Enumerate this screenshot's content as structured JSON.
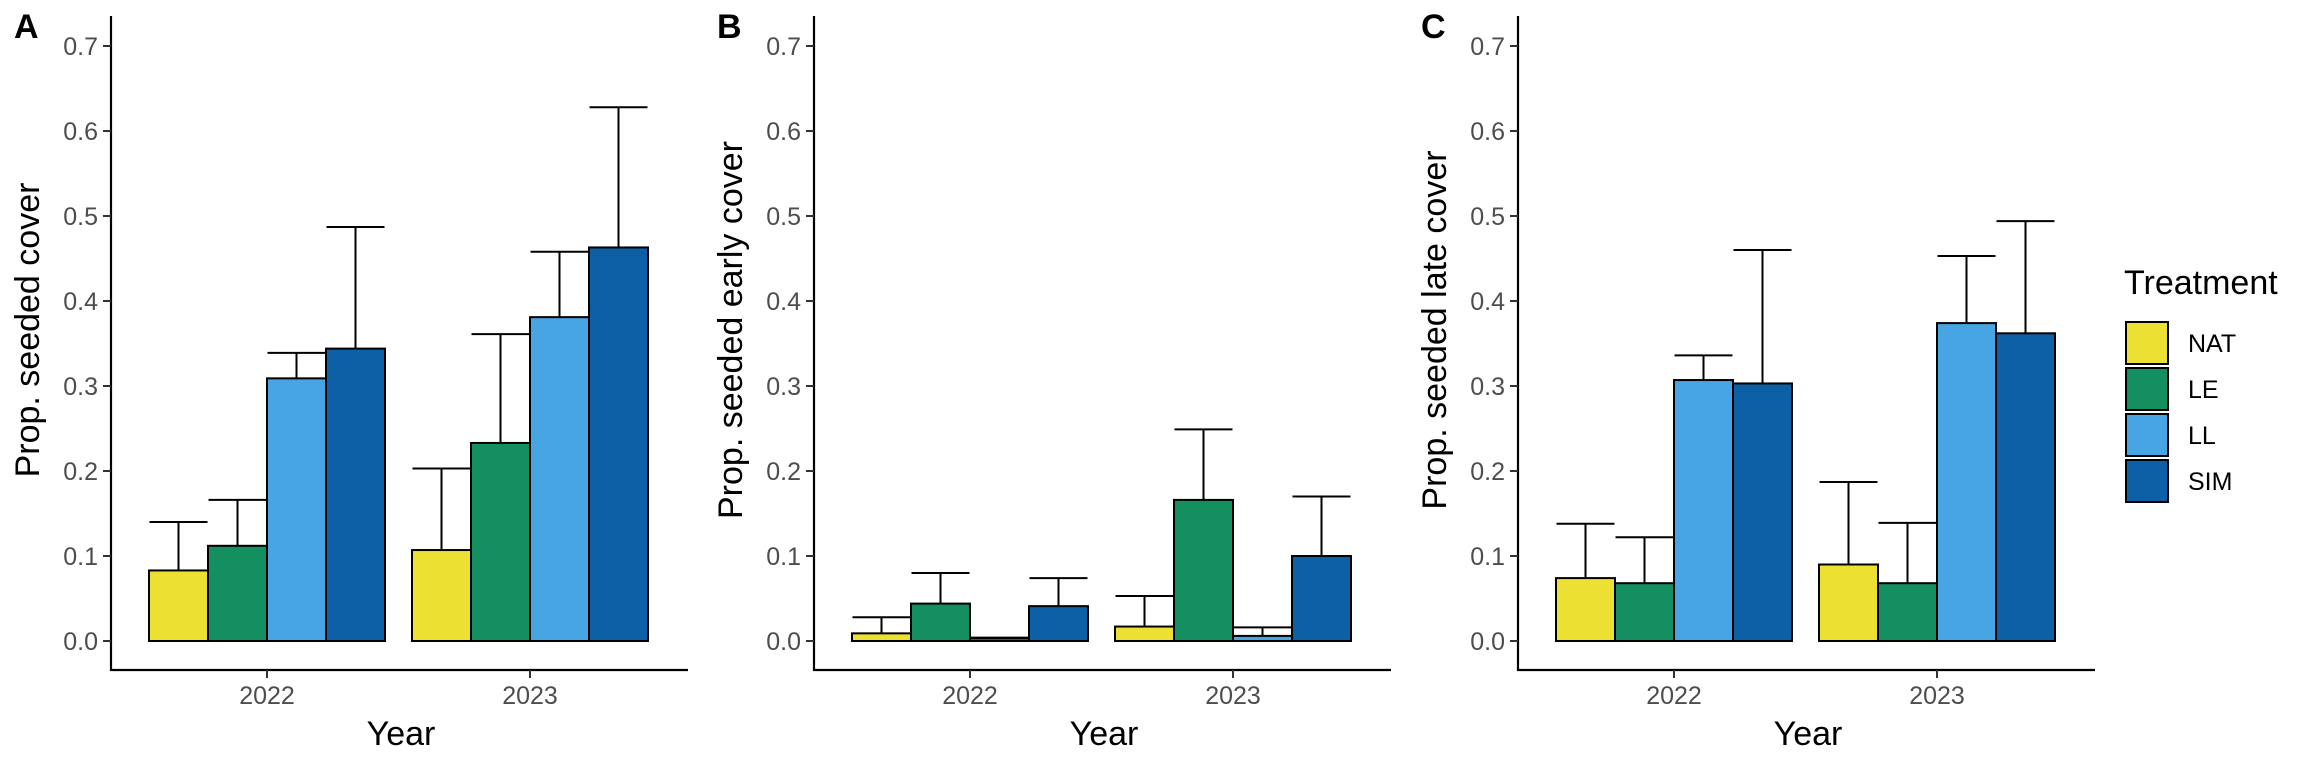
{
  "legend": {
    "title": "Treatment",
    "items": [
      {
        "label": "NAT",
        "color": "#ece133"
      },
      {
        "label": "LE",
        "color": "#148f5f"
      },
      {
        "label": "LL",
        "color": "#48a5e3"
      },
      {
        "label": "SIM",
        "color": "#0d60a6"
      }
    ]
  },
  "chart_data": [
    {
      "type": "bar",
      "panel": "A",
      "xlabel": "Year",
      "ylabel": "Prop. seeded cover",
      "categories": [
        "2022",
        "2023"
      ],
      "ylim": [
        0,
        0.7
      ],
      "yticks": [
        0.0,
        0.1,
        0.2,
        0.3,
        0.4,
        0.5,
        0.6,
        0.7
      ],
      "ytick_labels": [
        "0.0",
        "0.1",
        "0.2",
        "0.3",
        "0.4",
        "0.5",
        "0.6",
        "0.7"
      ],
      "error_bars": "upper",
      "series": [
        {
          "name": "NAT",
          "values": [
            0.083,
            0.107
          ],
          "upper": [
            0.14,
            0.203
          ]
        },
        {
          "name": "LE",
          "values": [
            0.112,
            0.233
          ],
          "upper": [
            0.166,
            0.361
          ]
        },
        {
          "name": "LL",
          "values": [
            0.309,
            0.381
          ],
          "upper": [
            0.339,
            0.458
          ]
        },
        {
          "name": "SIM",
          "values": [
            0.344,
            0.463
          ],
          "upper": [
            0.487,
            0.628
          ]
        }
      ],
      "legend": "right",
      "grid": false
    },
    {
      "type": "bar",
      "panel": "B",
      "xlabel": "Year",
      "ylabel": "Prop. seeded early cover",
      "categories": [
        "2022",
        "2023"
      ],
      "ylim": [
        0,
        0.7
      ],
      "yticks": [
        0.0,
        0.1,
        0.2,
        0.3,
        0.4,
        0.5,
        0.6,
        0.7
      ],
      "ytick_labels": [
        "0.0",
        "0.1",
        "0.2",
        "0.3",
        "0.4",
        "0.5",
        "0.6",
        "0.7"
      ],
      "error_bars": "upper",
      "series": [
        {
          "name": "NAT",
          "values": [
            0.009,
            0.017
          ],
          "upper": [
            0.028,
            0.053
          ]
        },
        {
          "name": "LE",
          "values": [
            0.044,
            0.166
          ],
          "upper": [
            0.08,
            0.249
          ]
        },
        {
          "name": "LL",
          "values": [
            0.003,
            0.006
          ],
          "upper": [
            0.004,
            0.016
          ]
        },
        {
          "name": "SIM",
          "values": [
            0.041,
            0.1
          ],
          "upper": [
            0.074,
            0.17
          ]
        }
      ],
      "legend": "right",
      "grid": false
    },
    {
      "type": "bar",
      "panel": "C",
      "xlabel": "Year",
      "ylabel": "Prop. seeded late cover",
      "categories": [
        "2022",
        "2023"
      ],
      "ylim": [
        0,
        0.7
      ],
      "yticks": [
        0.0,
        0.1,
        0.2,
        0.3,
        0.4,
        0.5,
        0.6,
        0.7
      ],
      "ytick_labels": [
        "0.0",
        "0.1",
        "0.2",
        "0.3",
        "0.4",
        "0.5",
        "0.6",
        "0.7"
      ],
      "error_bars": "upper",
      "series": [
        {
          "name": "NAT",
          "values": [
            0.074,
            0.09
          ],
          "upper": [
            0.138,
            0.187
          ]
        },
        {
          "name": "LE",
          "values": [
            0.068,
            0.068
          ],
          "upper": [
            0.122,
            0.139
          ]
        },
        {
          "name": "LL",
          "values": [
            0.307,
            0.374
          ],
          "upper": [
            0.336,
            0.453
          ]
        },
        {
          "name": "SIM",
          "values": [
            0.303,
            0.362
          ],
          "upper": [
            0.46,
            0.494
          ]
        }
      ],
      "legend": "right",
      "grid": false
    }
  ]
}
